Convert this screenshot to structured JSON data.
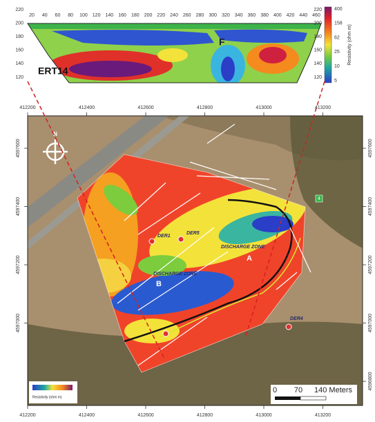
{
  "ert_section": {
    "label": "ERT14",
    "feature_label": "F",
    "distance_ticks": [
      20,
      40,
      60,
      80,
      100,
      120,
      140,
      160,
      180,
      200,
      220,
      240,
      260,
      280,
      300,
      320,
      340,
      360,
      380,
      400,
      420,
      440,
      460
    ],
    "elevation_ticks_left": [
      220,
      200,
      180,
      160,
      140,
      120
    ],
    "elevation_ticks_right": [
      220,
      200,
      180,
      160,
      140,
      120
    ],
    "colorbar_ticks": [
      400,
      158,
      62,
      25,
      10,
      5
    ],
    "colorbar_title": "Resistivity (ohm m)"
  },
  "map": {
    "x_ticks_top": [
      412200,
      412400,
      412600,
      412800,
      413000,
      413200
    ],
    "x_ticks_bottom": [
      412200,
      412400,
      412600,
      412800,
      413000,
      413200
    ],
    "y_ticks_left": [
      4597600,
      4597400,
      4597200,
      4597000
    ],
    "y_ticks_right": [
      4597600,
      4597400,
      4597200,
      4597000,
      4596800
    ],
    "north": "N",
    "wells": [
      "DER1",
      "DER5",
      "DER4"
    ],
    "zones": [
      "DISCHARGE ZONE",
      "DISCHARGE ZONE"
    ],
    "points": [
      "A",
      "B"
    ],
    "marker": "4",
    "scale_bar": [
      "0",
      "70",
      "140 Meters"
    ],
    "legend_title": "Resistivity (ohm m)"
  }
}
